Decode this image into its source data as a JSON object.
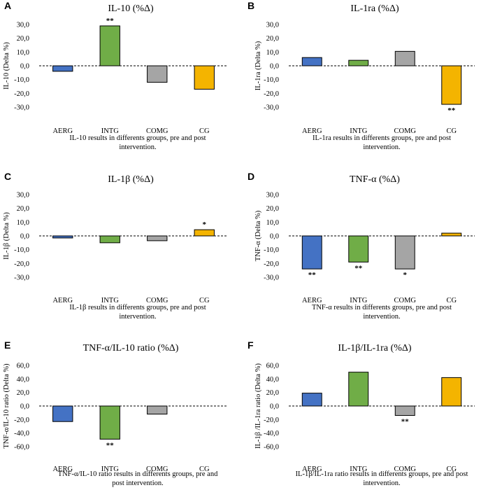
{
  "colors": {
    "AERG": "#4472c4",
    "INTG": "#70ad47",
    "COMG": "#a5a5a5",
    "CG": "#f4b400",
    "bar_stroke": "#000000"
  },
  "chart_data": [
    {
      "panel": "A",
      "type": "bar",
      "title": "IL-10 (%Δ)",
      "ylabel": "IL-10 (Delta %)",
      "categories": [
        "AERG",
        "INTG",
        "COMG",
        "CG"
      ],
      "values": [
        -4,
        29,
        -12,
        -17
      ],
      "significance": [
        "",
        "**",
        "",
        ""
      ],
      "ylim": [
        -30,
        30
      ],
      "yticks": [
        30,
        20,
        10,
        0,
        -10,
        -20,
        -30
      ],
      "ytick_labels": [
        "30,0",
        "20,0",
        "10,0",
        "0,0",
        "-10,0",
        "-20,0",
        "-30,0"
      ],
      "caption": [
        "IL-10 results in differents groups, pre and post",
        "intervention."
      ]
    },
    {
      "panel": "B",
      "type": "bar",
      "title": "IL-1ra (%Δ)",
      "ylabel": "IL-1ra (Delta %)",
      "categories": [
        "AERG",
        "INTG",
        "COMG",
        "CG"
      ],
      "values": [
        6,
        4,
        10.5,
        -28
      ],
      "significance": [
        "",
        "",
        "",
        "**"
      ],
      "ylim": [
        -30,
        30
      ],
      "yticks": [
        30,
        20,
        10,
        0,
        -10,
        -20,
        -30
      ],
      "ytick_labels": [
        "30,0",
        "20,0",
        "10,0",
        "0,0",
        "-10,0",
        "-20,0",
        "-30,0"
      ],
      "caption": [
        "IL-1ra results in differents groups, pre and post",
        "intervention."
      ]
    },
    {
      "panel": "C",
      "type": "bar",
      "title": "IL-1β  (%Δ)",
      "ylabel": "IL-1β (Delta %)",
      "categories": [
        "AERG",
        "INTG",
        "COMG",
        "CG"
      ],
      "values": [
        -1.5,
        -5,
        -3.5,
        4.5
      ],
      "significance": [
        "",
        "",
        "",
        "*"
      ],
      "ylim": [
        -30,
        30
      ],
      "yticks": [
        30,
        20,
        10,
        0,
        -10,
        -20,
        -30
      ],
      "ytick_labels": [
        "30,0",
        "20,0",
        "10,0",
        "0,0",
        "-10,0",
        "-20,0",
        "-30,0"
      ],
      "caption": [
        "IL-1β  results in differents groups, pre and post",
        "intervention."
      ]
    },
    {
      "panel": "D",
      "type": "bar",
      "title": "TNF-α (%Δ)",
      "ylabel": "TNF-α (Delta %)",
      "categories": [
        "AERG",
        "INTG",
        "COMG",
        "CG"
      ],
      "values": [
        -24,
        -19,
        -24,
        2
      ],
      "significance": [
        "**",
        "**",
        "*",
        ""
      ],
      "ylim": [
        -30,
        30
      ],
      "yticks": [
        30,
        20,
        10,
        0,
        -10,
        -20,
        -30
      ],
      "ytick_labels": [
        "30,0",
        "20,0",
        "10,0",
        "0,0",
        "-10,0",
        "-20,0",
        "-30,0"
      ],
      "caption": [
        "TNF-α results in differents groups, pre and post",
        "intervention."
      ]
    },
    {
      "panel": "E",
      "type": "bar",
      "title": "TNF-α/IL-10 ratio (%Δ)",
      "ylabel": "TNF-α/IL-10 ratio (Delta %)",
      "categories": [
        "AERG",
        "INTG",
        "COMG",
        "CG"
      ],
      "values": [
        -23,
        -49,
        -12,
        0
      ],
      "significance": [
        "",
        "**",
        "",
        ""
      ],
      "ylim": [
        -60,
        60
      ],
      "yticks": [
        60,
        40,
        20,
        0,
        -20,
        -40,
        -60
      ],
      "ytick_labels": [
        "60,0",
        "40,0",
        "20,0",
        "0,0",
        "-20,0",
        "-40,0",
        "-60,0"
      ],
      "caption": [
        "TNF-α/IL-10 ratio results in differents groups, pre and",
        "post intervention."
      ]
    },
    {
      "panel": "F",
      "type": "bar",
      "title": "IL-1β/IL-1ra (%Δ)",
      "ylabel": "IL-1β /IL-1ra ratio (Delta %)",
      "categories": [
        "AERG",
        "INTG",
        "COMG",
        "CG"
      ],
      "values": [
        19,
        50,
        -14,
        42
      ],
      "significance": [
        "",
        "",
        "**",
        ""
      ],
      "ylim": [
        -60,
        60
      ],
      "yticks": [
        60,
        40,
        20,
        0,
        -20,
        -40,
        -60
      ],
      "ytick_labels": [
        "60,0",
        "40,0",
        "20,0",
        "0,0",
        "-20,0",
        "-40,0",
        "-60,0"
      ],
      "caption": [
        "IL-1β/IL-1ra ratio results in differents groups, pre and post",
        "intervention."
      ]
    }
  ]
}
